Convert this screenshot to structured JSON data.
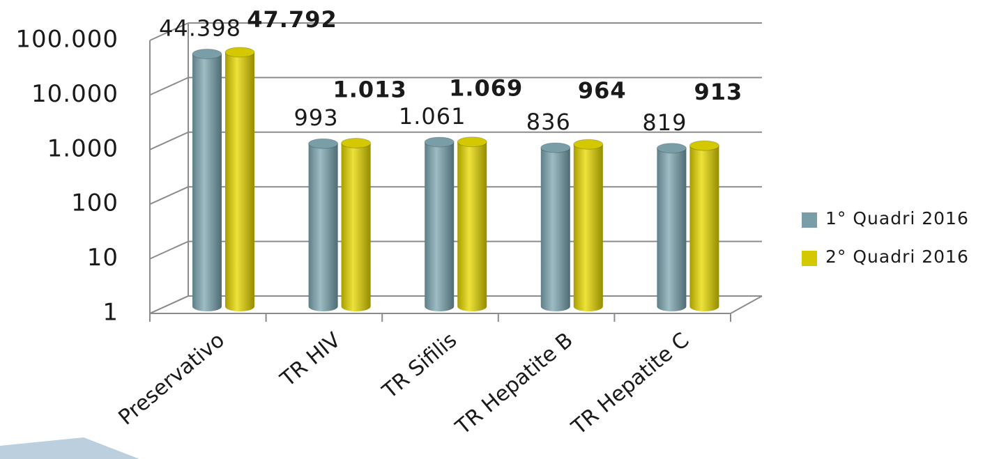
{
  "chart_data": {
    "type": "bar",
    "categories": [
      "Preservativo",
      "TR HIV",
      "TR Sifilis",
      "TR Hepatite B",
      "TR Hepatite C"
    ],
    "series": [
      {
        "name": "1° Quadri 2016",
        "color": "#7a9ea8",
        "values": [
          44398,
          993,
          1061,
          836,
          819
        ],
        "value_labels": [
          "44.398",
          "993",
          "1.061",
          "836",
          "819"
        ]
      },
      {
        "name": "2° Quadri 2016",
        "color": "#d4c800",
        "values": [
          47792,
          1013,
          1069,
          964,
          913
        ],
        "value_labels": [
          "47.792",
          "1.013",
          "1.069",
          "964",
          "913"
        ]
      }
    ],
    "ylim": [
      1,
      100000
    ],
    "yticks": [
      1,
      10,
      100,
      {
        "value": 1000,
        "label": "1.000"
      },
      {
        "value": 10000,
        "label": "10.000"
      },
      {
        "value": 100000,
        "label": "100.000"
      }
    ],
    "log_scale": true,
    "grid": true,
    "legend": "right"
  }
}
